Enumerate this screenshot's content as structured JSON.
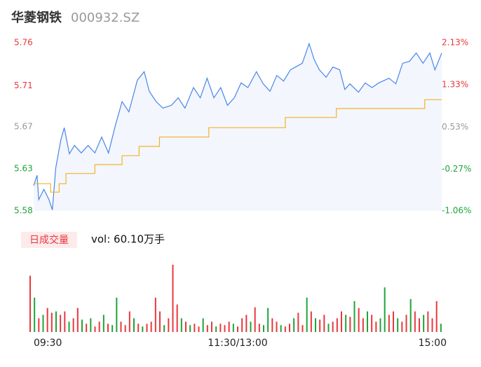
{
  "chart_data": {
    "type": "intraday",
    "title": "华菱钢铁",
    "subtitle": "000932.SZ",
    "xlim": [
      0,
      240
    ],
    "xticks": [
      {
        "value": 0,
        "label": "09:30"
      },
      {
        "value": 120,
        "label": "11:30/13:00"
      },
      {
        "value": 240,
        "label": "15:00"
      }
    ],
    "ylim": [
      5.58,
      5.76
    ],
    "yticks": [
      {
        "value": 5.58,
        "label": "5.58"
      },
      {
        "value": 5.625,
        "label": "5.63"
      },
      {
        "value": 5.67,
        "label": "5.67"
      },
      {
        "value": 5.714,
        "label": "5.71"
      },
      {
        "value": 5.76,
        "label": "5.76"
      }
    ],
    "y2lim": [
      -1.06,
      2.13
    ],
    "y2ticks": [
      {
        "value": -1.06,
        "label": "-1.06%"
      },
      {
        "value": -0.27,
        "label": "-0.27%"
      },
      {
        "value": 0.53,
        "label": "0.53%"
      },
      {
        "value": 1.33,
        "label": "1.33%"
      },
      {
        "value": 2.13,
        "label": "2.13%"
      }
    ],
    "tick_colors": [
      "#1fa33a",
      "#1fa33a",
      "#999999",
      "#e8383d",
      "#e8383d"
    ],
    "price": {
      "color": "#4a86e8",
      "fill": "#f3f6fd",
      "x": [
        0,
        2,
        3,
        6,
        9,
        11,
        13,
        16,
        18,
        21,
        24,
        28,
        32,
        36,
        40,
        44,
        48,
        52,
        56,
        61,
        65,
        68,
        72,
        76,
        81,
        85,
        89,
        94,
        98,
        102,
        106,
        110,
        114,
        118,
        122,
        126,
        131,
        135,
        139,
        143,
        147,
        151,
        155,
        158,
        162,
        165,
        168,
        172,
        176,
        180,
        183,
        186,
        191,
        195,
        199,
        203,
        209,
        213,
        217,
        221,
        225,
        229,
        233,
        236,
        240
      ],
      "values": [
        5.607,
        5.618,
        5.592,
        5.603,
        5.592,
        5.581,
        5.626,
        5.656,
        5.669,
        5.641,
        5.65,
        5.642,
        5.65,
        5.642,
        5.659,
        5.642,
        5.671,
        5.697,
        5.686,
        5.72,
        5.729,
        5.708,
        5.697,
        5.69,
        5.693,
        5.701,
        5.69,
        5.712,
        5.701,
        5.722,
        5.701,
        5.712,
        5.693,
        5.701,
        5.717,
        5.712,
        5.729,
        5.716,
        5.708,
        5.725,
        5.719,
        5.731,
        5.735,
        5.738,
        5.759,
        5.742,
        5.731,
        5.723,
        5.734,
        5.731,
        5.71,
        5.716,
        5.707,
        5.717,
        5.712,
        5.717,
        5.722,
        5.716,
        5.738,
        5.74,
        5.749,
        5.738,
        5.749,
        5.731,
        5.749
      ]
    },
    "average": {
      "color": "#f5b22a",
      "x": [
        0,
        10,
        15,
        19,
        36,
        52,
        62,
        74,
        103,
        148,
        178,
        230,
        240
      ],
      "values": [
        5.609,
        5.6,
        5.609,
        5.62,
        5.6295,
        5.639,
        5.649,
        5.659,
        5.669,
        5.68,
        5.6895,
        5.699,
        5.699
      ]
    },
    "volume": {
      "label": "日成交量",
      "text": "vol: 60.10万手",
      "ylim": [
        0,
        100
      ],
      "values": [
        82,
        50,
        20,
        25,
        35,
        28,
        30,
        25,
        30,
        15,
        20,
        35,
        18,
        12,
        20,
        8,
        15,
        25,
        12,
        10,
        50,
        15,
        10,
        30,
        20,
        12,
        8,
        12,
        15,
        50,
        30,
        10,
        20,
        98,
        40,
        20,
        15,
        10,
        12,
        8,
        20,
        10,
        15,
        8,
        12,
        10,
        15,
        12,
        8,
        20,
        25,
        15,
        36,
        12,
        10,
        35,
        20,
        15,
        10,
        8,
        12,
        20,
        28,
        10,
        50,
        30,
        20,
        18,
        25,
        12,
        15,
        20,
        30,
        25,
        22,
        45,
        35,
        20,
        30,
        25,
        15,
        20,
        65,
        25,
        30,
        20,
        15,
        25,
        48,
        30,
        20,
        25,
        30,
        20,
        45,
        12
      ],
      "colors": [
        "#e8383d",
        "#1fa33a",
        "#e8383d",
        "#1fa33a",
        "#e8383d",
        "#e8383d",
        "#1fa33a",
        "#e8383d",
        "#e8383d",
        "#1fa33a",
        "#e8383d",
        "#e8383d",
        "#1fa33a",
        "#e8383d",
        "#1fa33a",
        "#e8383d",
        "#e8383d",
        "#1fa33a",
        "#e8383d",
        "#1fa33a",
        "#1fa33a",
        "#e8383d",
        "#e8383d",
        "#e8383d",
        "#1fa33a",
        "#e8383d",
        "#1fa33a",
        "#e8383d",
        "#e8383d",
        "#e8383d",
        "#e8383d",
        "#1fa33a",
        "#e8383d",
        "#e8383d",
        "#e8383d",
        "#1fa33a",
        "#e8383d",
        "#1fa33a",
        "#e8383d",
        "#e8383d",
        "#1fa33a",
        "#e8383d",
        "#e8383d",
        "#1fa33a",
        "#e8383d",
        "#e8383d",
        "#e8383d",
        "#1fa33a",
        "#e8383d",
        "#e8383d",
        "#e8383d",
        "#1fa33a",
        "#e8383d",
        "#e8383d",
        "#1fa33a",
        "#1fa33a",
        "#e8383d",
        "#e8383d",
        "#1fa33a",
        "#e8383d",
        "#e8383d",
        "#1fa33a",
        "#e8383d",
        "#e8383d",
        "#1fa33a",
        "#e8383d",
        "#1fa33a",
        "#e8383d",
        "#e8383d",
        "#1fa33a",
        "#e8383d",
        "#e8383d",
        "#e8383d",
        "#1fa33a",
        "#e8383d",
        "#1fa33a",
        "#e8383d",
        "#e8383d",
        "#1fa33a",
        "#e8383d",
        "#e8383d",
        "#1fa33a",
        "#1fa33a",
        "#e8383d",
        "#e8383d",
        "#1fa33a",
        "#e8383d",
        "#e8383d",
        "#1fa33a",
        "#e8383d",
        "#e8383d",
        "#1fa33a",
        "#e8383d",
        "#e8383d",
        "#e8383d",
        "#1fa33a"
      ]
    }
  }
}
